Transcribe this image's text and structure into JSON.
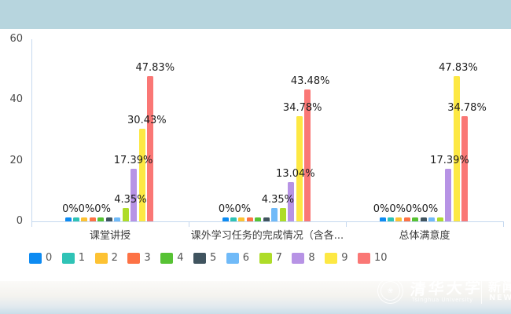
{
  "colors": {
    "top_band": "#b7d5de",
    "axis": "#c5d8ef",
    "data_label_text": "#1c1c1c",
    "category_text": "#3c3c3c",
    "legend_text": "#555555"
  },
  "chart_data": {
    "type": "bar",
    "title": "",
    "xlabel": "",
    "ylabel": "",
    "ylim": [
      0,
      60
    ],
    "yticks": [
      0,
      20,
      40,
      60
    ],
    "grid": false,
    "legend_position": "bottom",
    "categories": [
      "课堂讲授",
      "课外学习任务的完成情况（含各...",
      "总体满意度"
    ],
    "series": [
      {
        "name": "0",
        "color": "#0d8bf2"
      },
      {
        "name": "1",
        "color": "#2fc3b6"
      },
      {
        "name": "2",
        "color": "#fdc233"
      },
      {
        "name": "3",
        "color": "#fd7245"
      },
      {
        "name": "4",
        "color": "#57c234"
      },
      {
        "name": "5",
        "color": "#40545f"
      },
      {
        "name": "6",
        "color": "#70baf8"
      },
      {
        "name": "7",
        "color": "#aedc29"
      },
      {
        "name": "8",
        "color": "#b793e5"
      },
      {
        "name": "9",
        "color": "#fde843"
      },
      {
        "name": "10",
        "color": "#fa7775"
      }
    ],
    "groups": [
      {
        "category": "课堂讲授",
        "values": [
          0,
          0,
          0,
          0,
          0,
          0,
          0,
          4.35,
          17.39,
          30.43,
          47.83
        ],
        "data_labels": [
          {
            "text": "0%0%0%",
            "value": 0,
            "pos": 2.25
          },
          {
            "text": "4.35%",
            "value": 4.35,
            "pos": 7.6
          },
          {
            "text": "17.39%",
            "value": 17.39,
            "pos": 7.95
          },
          {
            "text": "30.43%",
            "value": 30.43,
            "pos": 9.6
          },
          {
            "text": "47.83%",
            "value": 47.83,
            "pos": 10.6
          }
        ]
      },
      {
        "category": "课外学习任务的完成情况（含各...",
        "values": [
          0,
          0,
          0,
          0,
          0,
          0,
          4.35,
          4.35,
          13.04,
          34.78,
          43.48
        ],
        "data_labels": [
          {
            "text": "0%0%",
            "value": 0,
            "pos": 1.15
          },
          {
            "text": "4.35%",
            "value": 4.35,
            "pos": 6.4
          },
          {
            "text": "13.04%",
            "value": 13.04,
            "pos": 8.55
          },
          {
            "text": "34.78%",
            "value": 34.78,
            "pos": 9.4
          },
          {
            "text": "43.48%",
            "value": 43.48,
            "pos": 10.35
          }
        ]
      },
      {
        "category": "总体满意度",
        "values": [
          0,
          0,
          0,
          0,
          0,
          0,
          0,
          0,
          17.39,
          47.83,
          34.78
        ],
        "data_labels": [
          {
            "text": "0%0%0%0%",
            "value": 0,
            "pos": 2.82
          },
          {
            "text": "17.39%",
            "value": 17.39,
            "pos": 8.18
          },
          {
            "text": "47.83%",
            "value": 47.83,
            "pos": 9.23
          },
          {
            "text": "34.78%",
            "value": 34.78,
            "pos": 10.29
          }
        ]
      }
    ]
  },
  "watermark": {
    "seal_icon": "tsinghua-university-seal",
    "seal_glyph": "❀",
    "university_cn": "清华大学",
    "university_en": "Tsinghua University",
    "news_cn": "新闻",
    "news_en": "NEWS"
  }
}
